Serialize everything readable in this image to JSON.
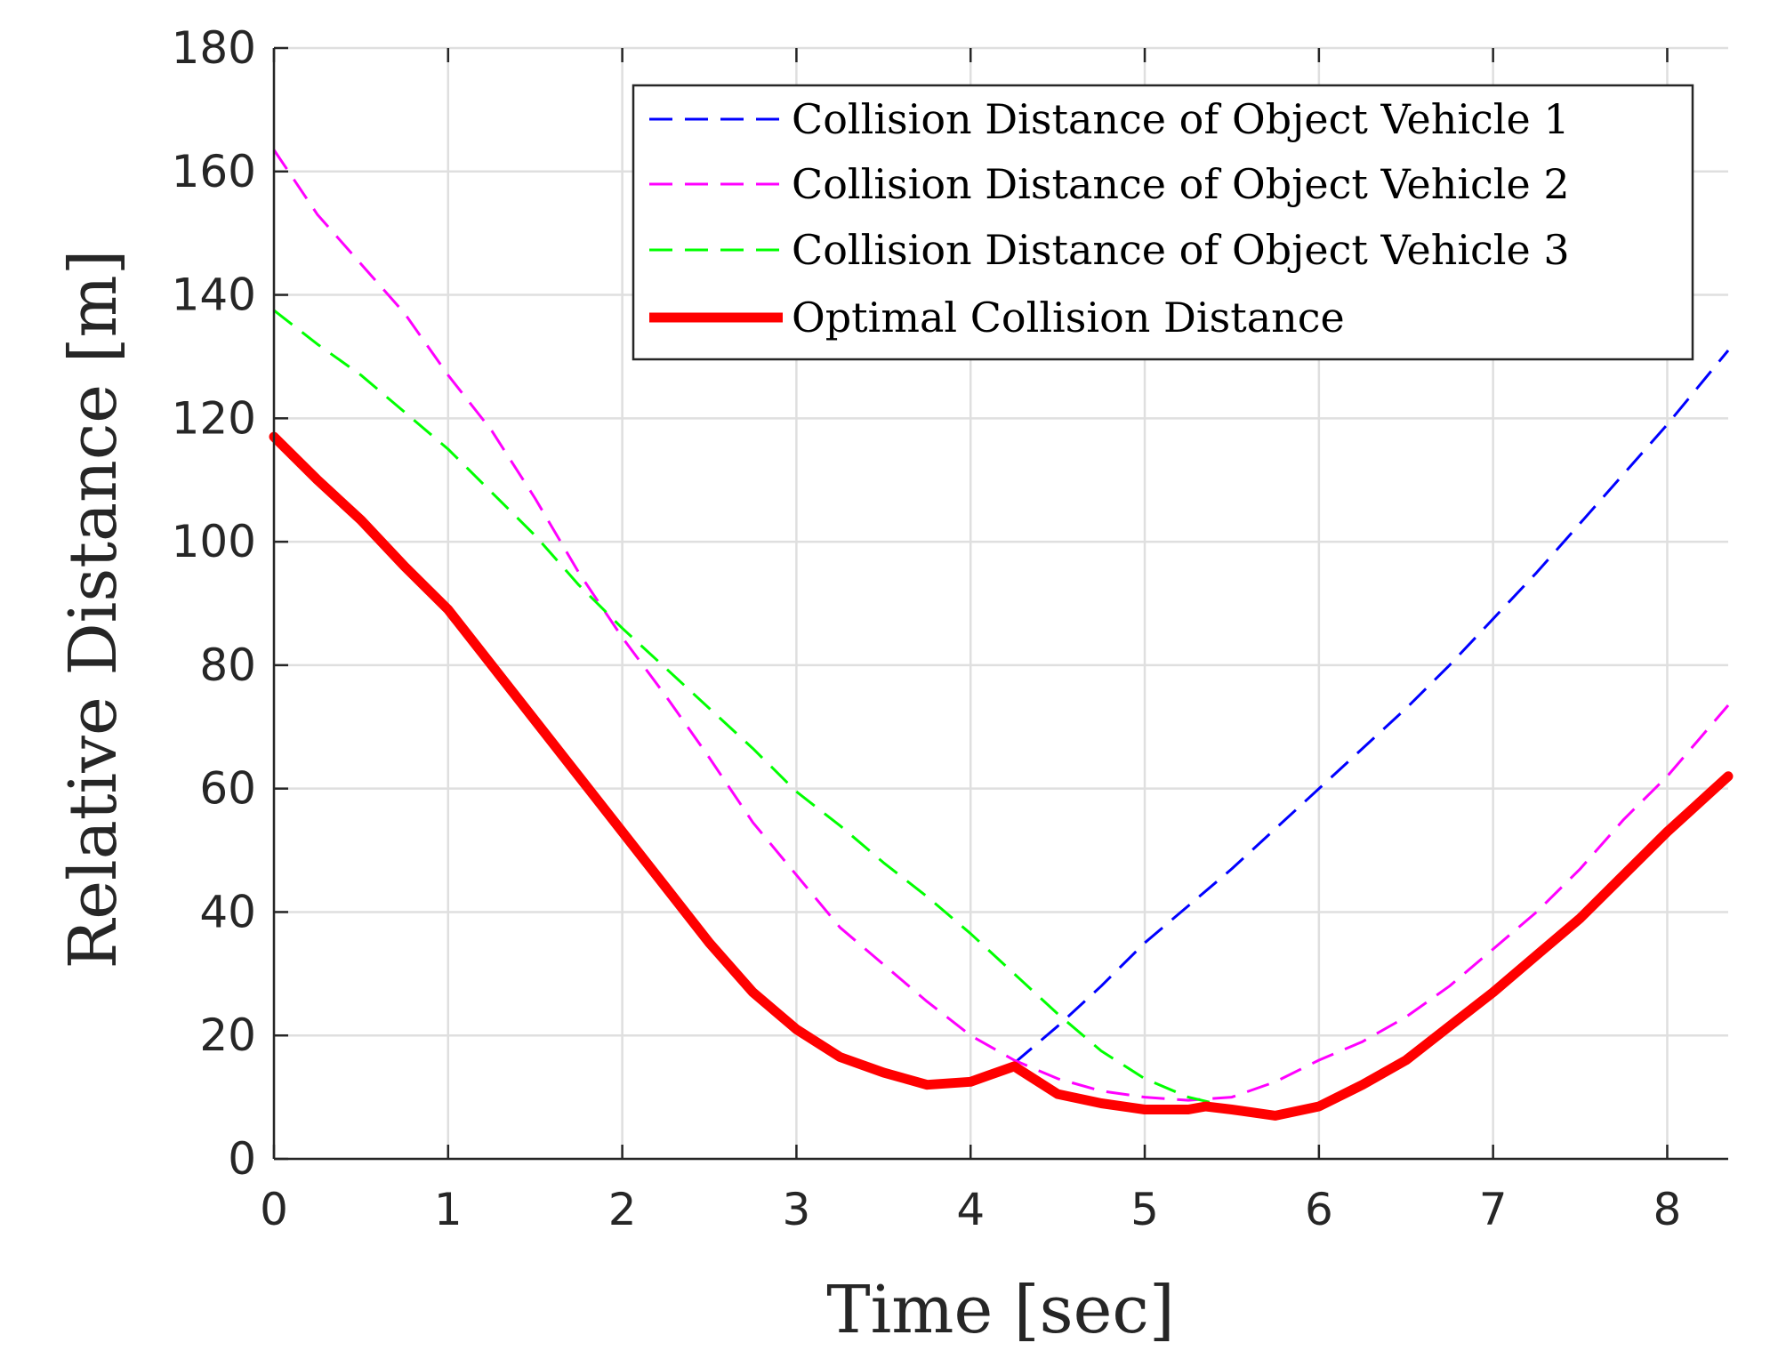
{
  "chart_data": {
    "type": "line",
    "title": "",
    "xlabel": "Time [sec]",
    "ylabel": "Relative Distance [m]",
    "xlim": [
      0,
      8.35
    ],
    "ylim": [
      0,
      180
    ],
    "xticks": [
      0,
      1,
      2,
      3,
      4,
      5,
      6,
      7,
      8
    ],
    "yticks": [
      0,
      20,
      40,
      60,
      80,
      100,
      120,
      140,
      160,
      180
    ],
    "grid": true,
    "legend_position": "top-right",
    "series": [
      {
        "name": "Collision Distance of Object Vehicle 1",
        "color": "#0000ff",
        "style": "dashed",
        "x": [
          4.25,
          4.5,
          4.75,
          5.0,
          5.25,
          5.5,
          5.75,
          6.0,
          6.25,
          6.5,
          6.75,
          7.0,
          7.25,
          7.5,
          7.75,
          8.0,
          8.35
        ],
        "y": [
          15.5,
          21.5,
          28.0,
          35.0,
          41.0,
          47.0,
          53.5,
          60.0,
          66.5,
          73.0,
          80.0,
          87.5,
          95.0,
          103.0,
          111.0,
          119.0,
          131.0
        ]
      },
      {
        "name": "Collision Distance of Object Vehicle 2",
        "color": "#ff00ff",
        "style": "dashed",
        "x": [
          0.0,
          0.25,
          0.5,
          0.75,
          1.0,
          1.25,
          1.5,
          1.75,
          2.0,
          2.25,
          2.5,
          2.75,
          3.0,
          3.25,
          3.5,
          3.75,
          4.0,
          4.25,
          4.5,
          4.75,
          5.0,
          5.25,
          5.5,
          5.75,
          6.0,
          6.25,
          6.5,
          6.75,
          7.0,
          7.25,
          7.5,
          7.75,
          8.0,
          8.35
        ],
        "y": [
          163.5,
          153.0,
          145.0,
          137.0,
          127.0,
          118.0,
          107.0,
          95.0,
          84.5,
          75.0,
          65.0,
          54.5,
          46.0,
          37.5,
          31.5,
          25.5,
          20.0,
          16.0,
          13.0,
          11.0,
          10.0,
          9.5,
          10.0,
          12.5,
          16.0,
          19.0,
          23.0,
          28.0,
          34.0,
          40.0,
          47.0,
          55.0,
          62.0,
          73.5
        ]
      },
      {
        "name": "Collision Distance of Object Vehicle 3",
        "color": "#00ff00",
        "style": "dashed",
        "x": [
          0.0,
          0.25,
          0.5,
          0.75,
          1.0,
          1.25,
          1.5,
          1.75,
          2.0,
          2.25,
          2.5,
          2.75,
          3.0,
          3.25,
          3.5,
          3.75,
          4.0,
          4.25,
          4.5,
          4.75,
          5.0,
          5.25,
          5.4
        ],
        "y": [
          137.5,
          132.0,
          127.0,
          121.0,
          115.0,
          108.0,
          101.0,
          93.0,
          86.0,
          79.5,
          73.0,
          66.5,
          59.5,
          54.0,
          48.0,
          42.5,
          36.5,
          30.0,
          23.5,
          17.5,
          13.0,
          10.0,
          9.0
        ]
      },
      {
        "name": "Optimal Collision Distance",
        "color": "#ff0000",
        "style": "solid",
        "x": [
          0.0,
          0.25,
          0.5,
          0.75,
          1.0,
          1.25,
          1.5,
          1.75,
          2.0,
          2.25,
          2.5,
          2.75,
          3.0,
          3.25,
          3.5,
          3.75,
          4.0,
          4.1,
          4.25,
          4.5,
          4.75,
          5.0,
          5.25,
          5.35,
          5.5,
          5.75,
          6.0,
          6.25,
          6.5,
          6.75,
          7.0,
          7.25,
          7.5,
          7.75,
          8.0,
          8.35
        ],
        "y": [
          117.0,
          110.0,
          103.5,
          96.0,
          89.0,
          80.0,
          71.0,
          62.0,
          53.0,
          44.0,
          35.0,
          27.0,
          21.0,
          16.5,
          14.0,
          12.0,
          12.5,
          13.5,
          15.0,
          10.5,
          9.0,
          8.0,
          8.0,
          8.5,
          8.0,
          7.0,
          8.5,
          12.0,
          16.0,
          21.5,
          27.0,
          33.0,
          39.0,
          46.0,
          53.0,
          62.0
        ]
      }
    ]
  }
}
